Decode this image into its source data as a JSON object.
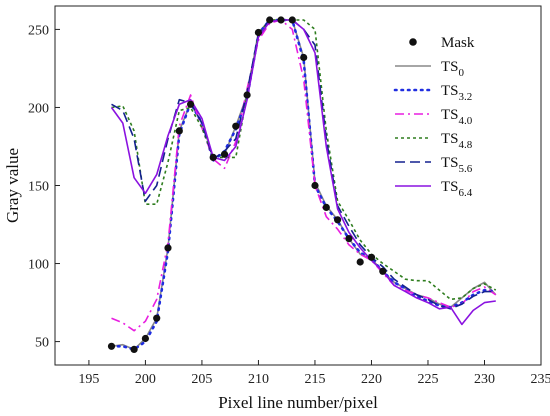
{
  "chart_data": {
    "type": "line",
    "xlabel": "Pixel line number/pixel",
    "ylabel": "Gray value",
    "xlim": [
      192,
      235
    ],
    "ylim": [
      35,
      265
    ],
    "xticks": [
      195,
      200,
      205,
      210,
      215,
      220,
      225,
      230,
      235
    ],
    "yticks": [
      50,
      100,
      150,
      200,
      250
    ],
    "grid": false,
    "legend_position": "top-right",
    "mask": {
      "name": "Mask",
      "color": "#111111",
      "points": [
        [
          197,
          47
        ],
        [
          199,
          45
        ],
        [
          200,
          52
        ],
        [
          201,
          65
        ],
        [
          202,
          110
        ],
        [
          203,
          185
        ],
        [
          204,
          202
        ],
        [
          206,
          168
        ],
        [
          207,
          170
        ],
        [
          208,
          188
        ],
        [
          209,
          208
        ],
        [
          210,
          248
        ],
        [
          211,
          256
        ],
        [
          212,
          256
        ],
        [
          213,
          256
        ],
        [
          214,
          232
        ],
        [
          215,
          150
        ],
        [
          216,
          136
        ],
        [
          217,
          128
        ],
        [
          218,
          116
        ],
        [
          219,
          101
        ],
        [
          220,
          104
        ],
        [
          221,
          95
        ]
      ]
    },
    "series": [
      {
        "name": "TS",
        "subscript": "0",
        "color": "#888888",
        "dash": "",
        "points": [
          [
            197,
            47
          ],
          [
            198,
            48
          ],
          [
            199,
            45
          ],
          [
            200,
            52
          ],
          [
            201,
            65
          ],
          [
            202,
            110
          ],
          [
            203,
            185
          ],
          [
            204,
            203
          ],
          [
            205,
            190
          ],
          [
            206,
            168
          ],
          [
            207,
            170
          ],
          [
            208,
            188
          ],
          [
            209,
            208
          ],
          [
            210,
            248
          ],
          [
            211,
            256
          ],
          [
            212,
            256
          ],
          [
            213,
            256
          ],
          [
            214,
            232
          ],
          [
            215,
            152
          ],
          [
            216,
            137
          ],
          [
            217,
            128
          ],
          [
            218,
            116
          ],
          [
            219,
            106
          ],
          [
            220,
            103
          ],
          [
            221,
            95
          ],
          [
            222,
            88
          ],
          [
            223,
            84
          ],
          [
            224,
            80
          ],
          [
            225,
            78
          ],
          [
            226,
            74
          ],
          [
            227,
            72
          ],
          [
            228,
            78
          ],
          [
            229,
            84
          ],
          [
            230,
            88
          ],
          [
            231,
            80
          ]
        ]
      },
      {
        "name": "TS",
        "subscript": "3.2",
        "color": "#1f2de0",
        "dash": "1.5 5",
        "points": [
          [
            197,
            47
          ],
          [
            198,
            47
          ],
          [
            199,
            45
          ],
          [
            200,
            50
          ],
          [
            201,
            63
          ],
          [
            202,
            108
          ],
          [
            203,
            183
          ],
          [
            204,
            203
          ],
          [
            205,
            190
          ],
          [
            206,
            166
          ],
          [
            207,
            172
          ],
          [
            208,
            186
          ],
          [
            209,
            206
          ],
          [
            210,
            247
          ],
          [
            211,
            256
          ],
          [
            212,
            256
          ],
          [
            213,
            256
          ],
          [
            214,
            230
          ],
          [
            215,
            150
          ],
          [
            216,
            136
          ],
          [
            217,
            127
          ],
          [
            218,
            116
          ],
          [
            219,
            107
          ],
          [
            220,
            103
          ],
          [
            221,
            95
          ],
          [
            222,
            88
          ],
          [
            223,
            84
          ],
          [
            224,
            79
          ],
          [
            225,
            76
          ],
          [
            226,
            73
          ],
          [
            227,
            72
          ],
          [
            228,
            75
          ],
          [
            229,
            80
          ],
          [
            230,
            83
          ],
          [
            231,
            82
          ]
        ]
      },
      {
        "name": "TS",
        "subscript": "4.0",
        "color": "#e81ee0",
        "dash": "9 4 2 4",
        "points": [
          [
            197,
            65
          ],
          [
            198,
            62
          ],
          [
            199,
            57
          ],
          [
            200,
            63
          ],
          [
            201,
            77
          ],
          [
            202,
            113
          ],
          [
            203,
            188
          ],
          [
            204,
            208
          ],
          [
            205,
            187
          ],
          [
            206,
            167
          ],
          [
            207,
            161
          ],
          [
            208,
            178
          ],
          [
            209,
            212
          ],
          [
            210,
            243
          ],
          [
            211,
            254
          ],
          [
            212,
            256
          ],
          [
            213,
            250
          ],
          [
            214,
            218
          ],
          [
            215,
            150
          ],
          [
            216,
            130
          ],
          [
            217,
            122
          ],
          [
            218,
            112
          ],
          [
            219,
            106
          ],
          [
            220,
            102
          ],
          [
            221,
            94
          ],
          [
            222,
            86
          ],
          [
            223,
            83
          ],
          [
            224,
            80
          ],
          [
            225,
            78
          ],
          [
            226,
            75
          ],
          [
            227,
            72
          ],
          [
            228,
            74
          ],
          [
            229,
            82
          ],
          [
            230,
            85
          ],
          [
            231,
            80
          ]
        ]
      },
      {
        "name": "TS",
        "subscript": "4.8",
        "color": "#2e7d1e",
        "dash": "3 3",
        "points": [
          [
            197,
            200
          ],
          [
            198,
            201
          ],
          [
            199,
            185
          ],
          [
            200,
            138
          ],
          [
            201,
            138
          ],
          [
            202,
            165
          ],
          [
            203,
            198
          ],
          [
            204,
            200
          ],
          [
            205,
            187
          ],
          [
            206,
            168
          ],
          [
            207,
            168
          ],
          [
            208,
            168
          ],
          [
            209,
            208
          ],
          [
            210,
            247
          ],
          [
            211,
            256
          ],
          [
            212,
            256
          ],
          [
            213,
            256
          ],
          [
            214,
            256
          ],
          [
            215,
            250
          ],
          [
            216,
            185
          ],
          [
            217,
            140
          ],
          [
            218,
            128
          ],
          [
            219,
            115
          ],
          [
            220,
            106
          ],
          [
            221,
            100
          ],
          [
            222,
            95
          ],
          [
            223,
            90
          ],
          [
            224,
            89
          ],
          [
            225,
            89
          ],
          [
            226,
            83
          ],
          [
            227,
            77
          ],
          [
            228,
            78
          ],
          [
            229,
            84
          ],
          [
            230,
            87
          ],
          [
            231,
            83
          ]
        ]
      },
      {
        "name": "TS",
        "subscript": "5.6",
        "color": "#14218f",
        "dash": "10 5",
        "points": [
          [
            197,
            202
          ],
          [
            198,
            198
          ],
          [
            199,
            180
          ],
          [
            200,
            140
          ],
          [
            201,
            150
          ],
          [
            202,
            180
          ],
          [
            203,
            205
          ],
          [
            204,
            203
          ],
          [
            205,
            190
          ],
          [
            206,
            167
          ],
          [
            207,
            172
          ],
          [
            208,
            180
          ],
          [
            209,
            210
          ],
          [
            210,
            247
          ],
          [
            211,
            256
          ],
          [
            212,
            256
          ],
          [
            213,
            256
          ],
          [
            214,
            250
          ],
          [
            215,
            240
          ],
          [
            216,
            180
          ],
          [
            217,
            137
          ],
          [
            218,
            124
          ],
          [
            219,
            112
          ],
          [
            220,
            104
          ],
          [
            221,
            98
          ],
          [
            222,
            90
          ],
          [
            223,
            85
          ],
          [
            224,
            80
          ],
          [
            225,
            77
          ],
          [
            226,
            73
          ],
          [
            227,
            71
          ],
          [
            228,
            74
          ],
          [
            229,
            79
          ],
          [
            230,
            82
          ],
          [
            231,
            82
          ]
        ]
      },
      {
        "name": "TS",
        "subscript": "6.4",
        "color": "#8a12e0",
        "dash": "",
        "points": [
          [
            197,
            200
          ],
          [
            198,
            190
          ],
          [
            199,
            155
          ],
          [
            200,
            145
          ],
          [
            201,
            157
          ],
          [
            202,
            182
          ],
          [
            203,
            202
          ],
          [
            204,
            205
          ],
          [
            205,
            193
          ],
          [
            206,
            168
          ],
          [
            207,
            166
          ],
          [
            208,
            175
          ],
          [
            209,
            205
          ],
          [
            210,
            245
          ],
          [
            211,
            255
          ],
          [
            212,
            256
          ],
          [
            213,
            256
          ],
          [
            214,
            250
          ],
          [
            215,
            235
          ],
          [
            216,
            175
          ],
          [
            217,
            135
          ],
          [
            218,
            120
          ],
          [
            219,
            110
          ],
          [
            220,
            102
          ],
          [
            221,
            95
          ],
          [
            222,
            86
          ],
          [
            223,
            82
          ],
          [
            224,
            78
          ],
          [
            225,
            75
          ],
          [
            226,
            71
          ],
          [
            227,
            72
          ],
          [
            228,
            61
          ],
          [
            229,
            70
          ],
          [
            230,
            75
          ],
          [
            231,
            76
          ]
        ]
      }
    ]
  }
}
